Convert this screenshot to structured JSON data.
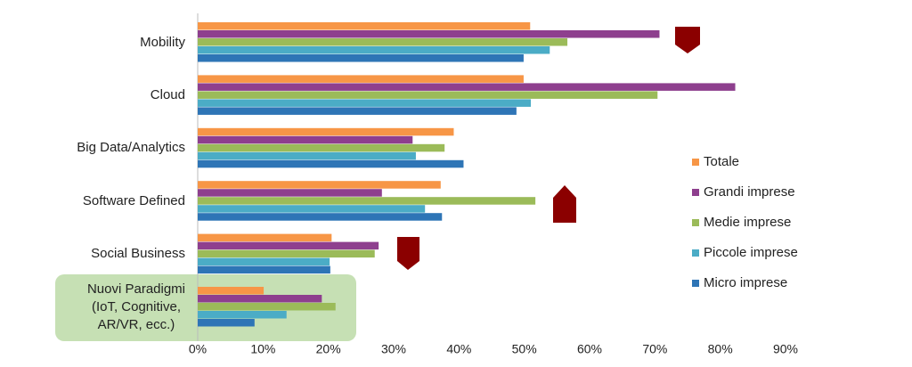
{
  "chart_data": {
    "type": "hbar",
    "categories": [
      "Mobility",
      "Cloud",
      "Big Data/Analytics",
      "Software Defined",
      "Social Business",
      "Nuovi Paradigmi\n(IoT, Cognitive,\nAR/VR, ecc.)"
    ],
    "series": [
      {
        "name": "Totale",
        "color": "#f79646",
        "values": [
          50.9,
          49.9,
          39.2,
          37.2,
          20.5,
          10.1
        ]
      },
      {
        "name": "Grandi imprese",
        "color": "#8e3f8e",
        "values": [
          70.7,
          82.3,
          32.9,
          28.2,
          27.7,
          19.0
        ]
      },
      {
        "name": "Medie imprese",
        "color": "#9bbb59",
        "values": [
          56.6,
          70.4,
          37.8,
          51.7,
          27.1,
          21.1
        ]
      },
      {
        "name": "Piccole imprese",
        "color": "#4bacc6",
        "values": [
          53.9,
          51.0,
          33.4,
          34.8,
          20.2,
          13.6
        ]
      },
      {
        "name": "Micro imprese",
        "color": "#2e75b6",
        "values": [
          49.9,
          48.8,
          40.7,
          37.4,
          20.3,
          8.7
        ]
      }
    ],
    "xlim": [
      0,
      90
    ],
    "xticks": [
      {
        "value": 0,
        "label": "0%"
      },
      {
        "value": 10,
        "label": "10%"
      },
      {
        "value": 20,
        "label": "20%"
      },
      {
        "value": 30,
        "label": "30%"
      },
      {
        "value": 40,
        "label": "40%"
      },
      {
        "value": 50,
        "label": "50%"
      },
      {
        "value": 60,
        "label": "60%"
      },
      {
        "value": 70,
        "label": "70%"
      },
      {
        "value": 80,
        "label": "80%"
      },
      {
        "value": 90,
        "label": "90%"
      }
    ],
    "grid": false,
    "legend": "right"
  }
}
